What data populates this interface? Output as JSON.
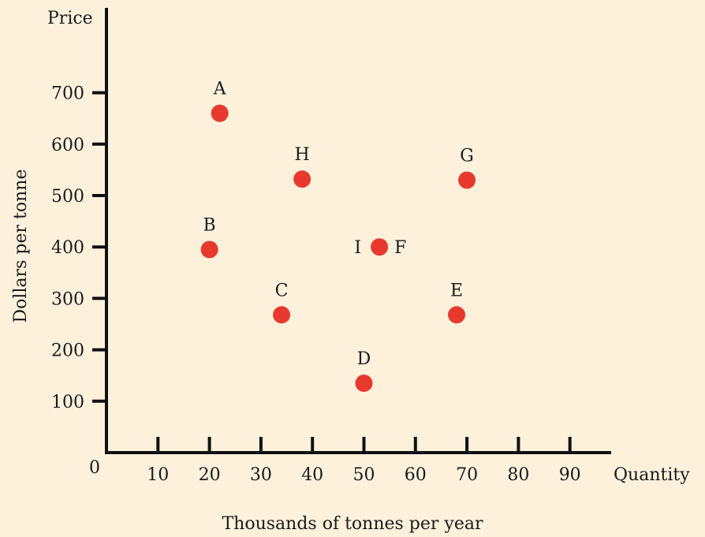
{
  "chart_data": {
    "type": "scatter",
    "y_axis_title": "Price",
    "y_axis_label": "Dollars per tonne",
    "x_axis_title": "Quantity",
    "x_axis_label": "Thousands of tonnes per year",
    "origin_label": "0",
    "x_ticks": [
      10,
      20,
      30,
      40,
      50,
      60,
      70,
      80,
      90
    ],
    "y_ticks": [
      100,
      200,
      300,
      400,
      500,
      600,
      700
    ],
    "xlim": [
      0,
      100
    ],
    "ylim": [
      0,
      850
    ],
    "grid": false,
    "legend": false,
    "point_color": "#e8392f",
    "points": [
      {
        "label": "A",
        "x": 22,
        "y": 660,
        "label_pos": "above"
      },
      {
        "label": "B",
        "x": 20,
        "y": 395,
        "label_pos": "above"
      },
      {
        "label": "C",
        "x": 34,
        "y": 268,
        "label_pos": "above"
      },
      {
        "label": "D",
        "x": 50,
        "y": 135,
        "label_pos": "above"
      },
      {
        "label": "E",
        "x": 68,
        "y": 268,
        "label_pos": "above"
      },
      {
        "label": "F",
        "x": 53,
        "y": 400,
        "label_pos": "right"
      },
      {
        "label": "G",
        "x": 70,
        "y": 530,
        "label_pos": "above"
      },
      {
        "label": "H",
        "x": 38,
        "y": 532,
        "label_pos": "above"
      },
      {
        "label": "I",
        "x": 53,
        "y": 400,
        "label_pos": "left"
      }
    ]
  }
}
